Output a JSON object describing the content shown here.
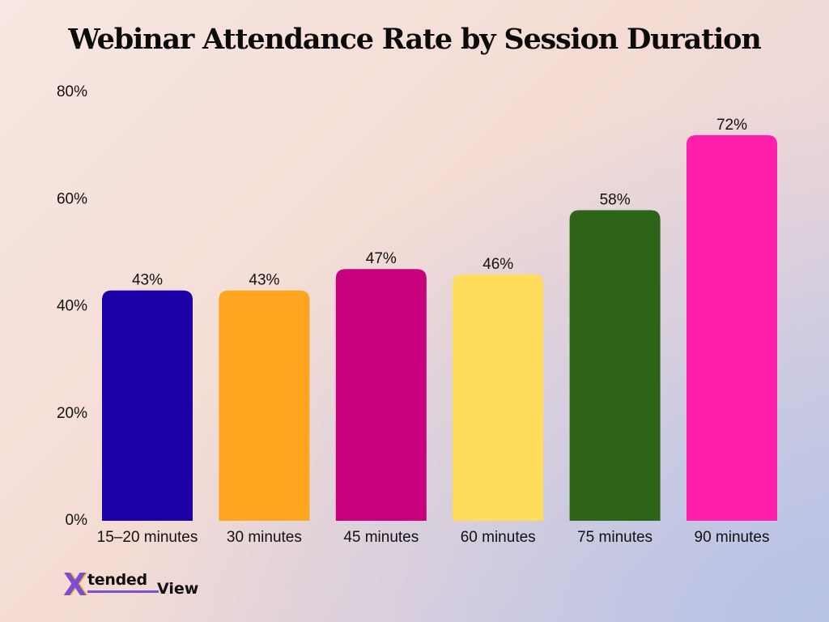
{
  "chart_data": {
    "type": "bar",
    "title": "Webinar Attendance Rate by Session Duration",
    "xlabel": "",
    "ylabel": "",
    "categories": [
      "15–20 minutes",
      "30 minutes",
      "45 minutes",
      "60 minutes",
      "75 minutes",
      "90 minutes"
    ],
    "values": [
      43,
      43,
      47,
      46,
      58,
      72
    ],
    "value_labels": [
      "43%",
      "43%",
      "47%",
      "46%",
      "58%",
      "72%"
    ],
    "colors": [
      "#1c00a8",
      "#ffa520",
      "#c8007e",
      "#ffdc5c",
      "#2e6418",
      "#ff1fab"
    ],
    "ylim": [
      0,
      80
    ],
    "yticks": [
      0,
      20,
      40,
      60,
      80
    ],
    "ytick_labels": [
      "0%",
      "20%",
      "40%",
      "60%",
      "80%"
    ],
    "grid": false,
    "legend": "none"
  },
  "brand": {
    "logo_x": "X",
    "logo_part1": "tended",
    "logo_part2": "View",
    "accent": "#7d4fd0",
    "secondary": "#f2c230"
  }
}
